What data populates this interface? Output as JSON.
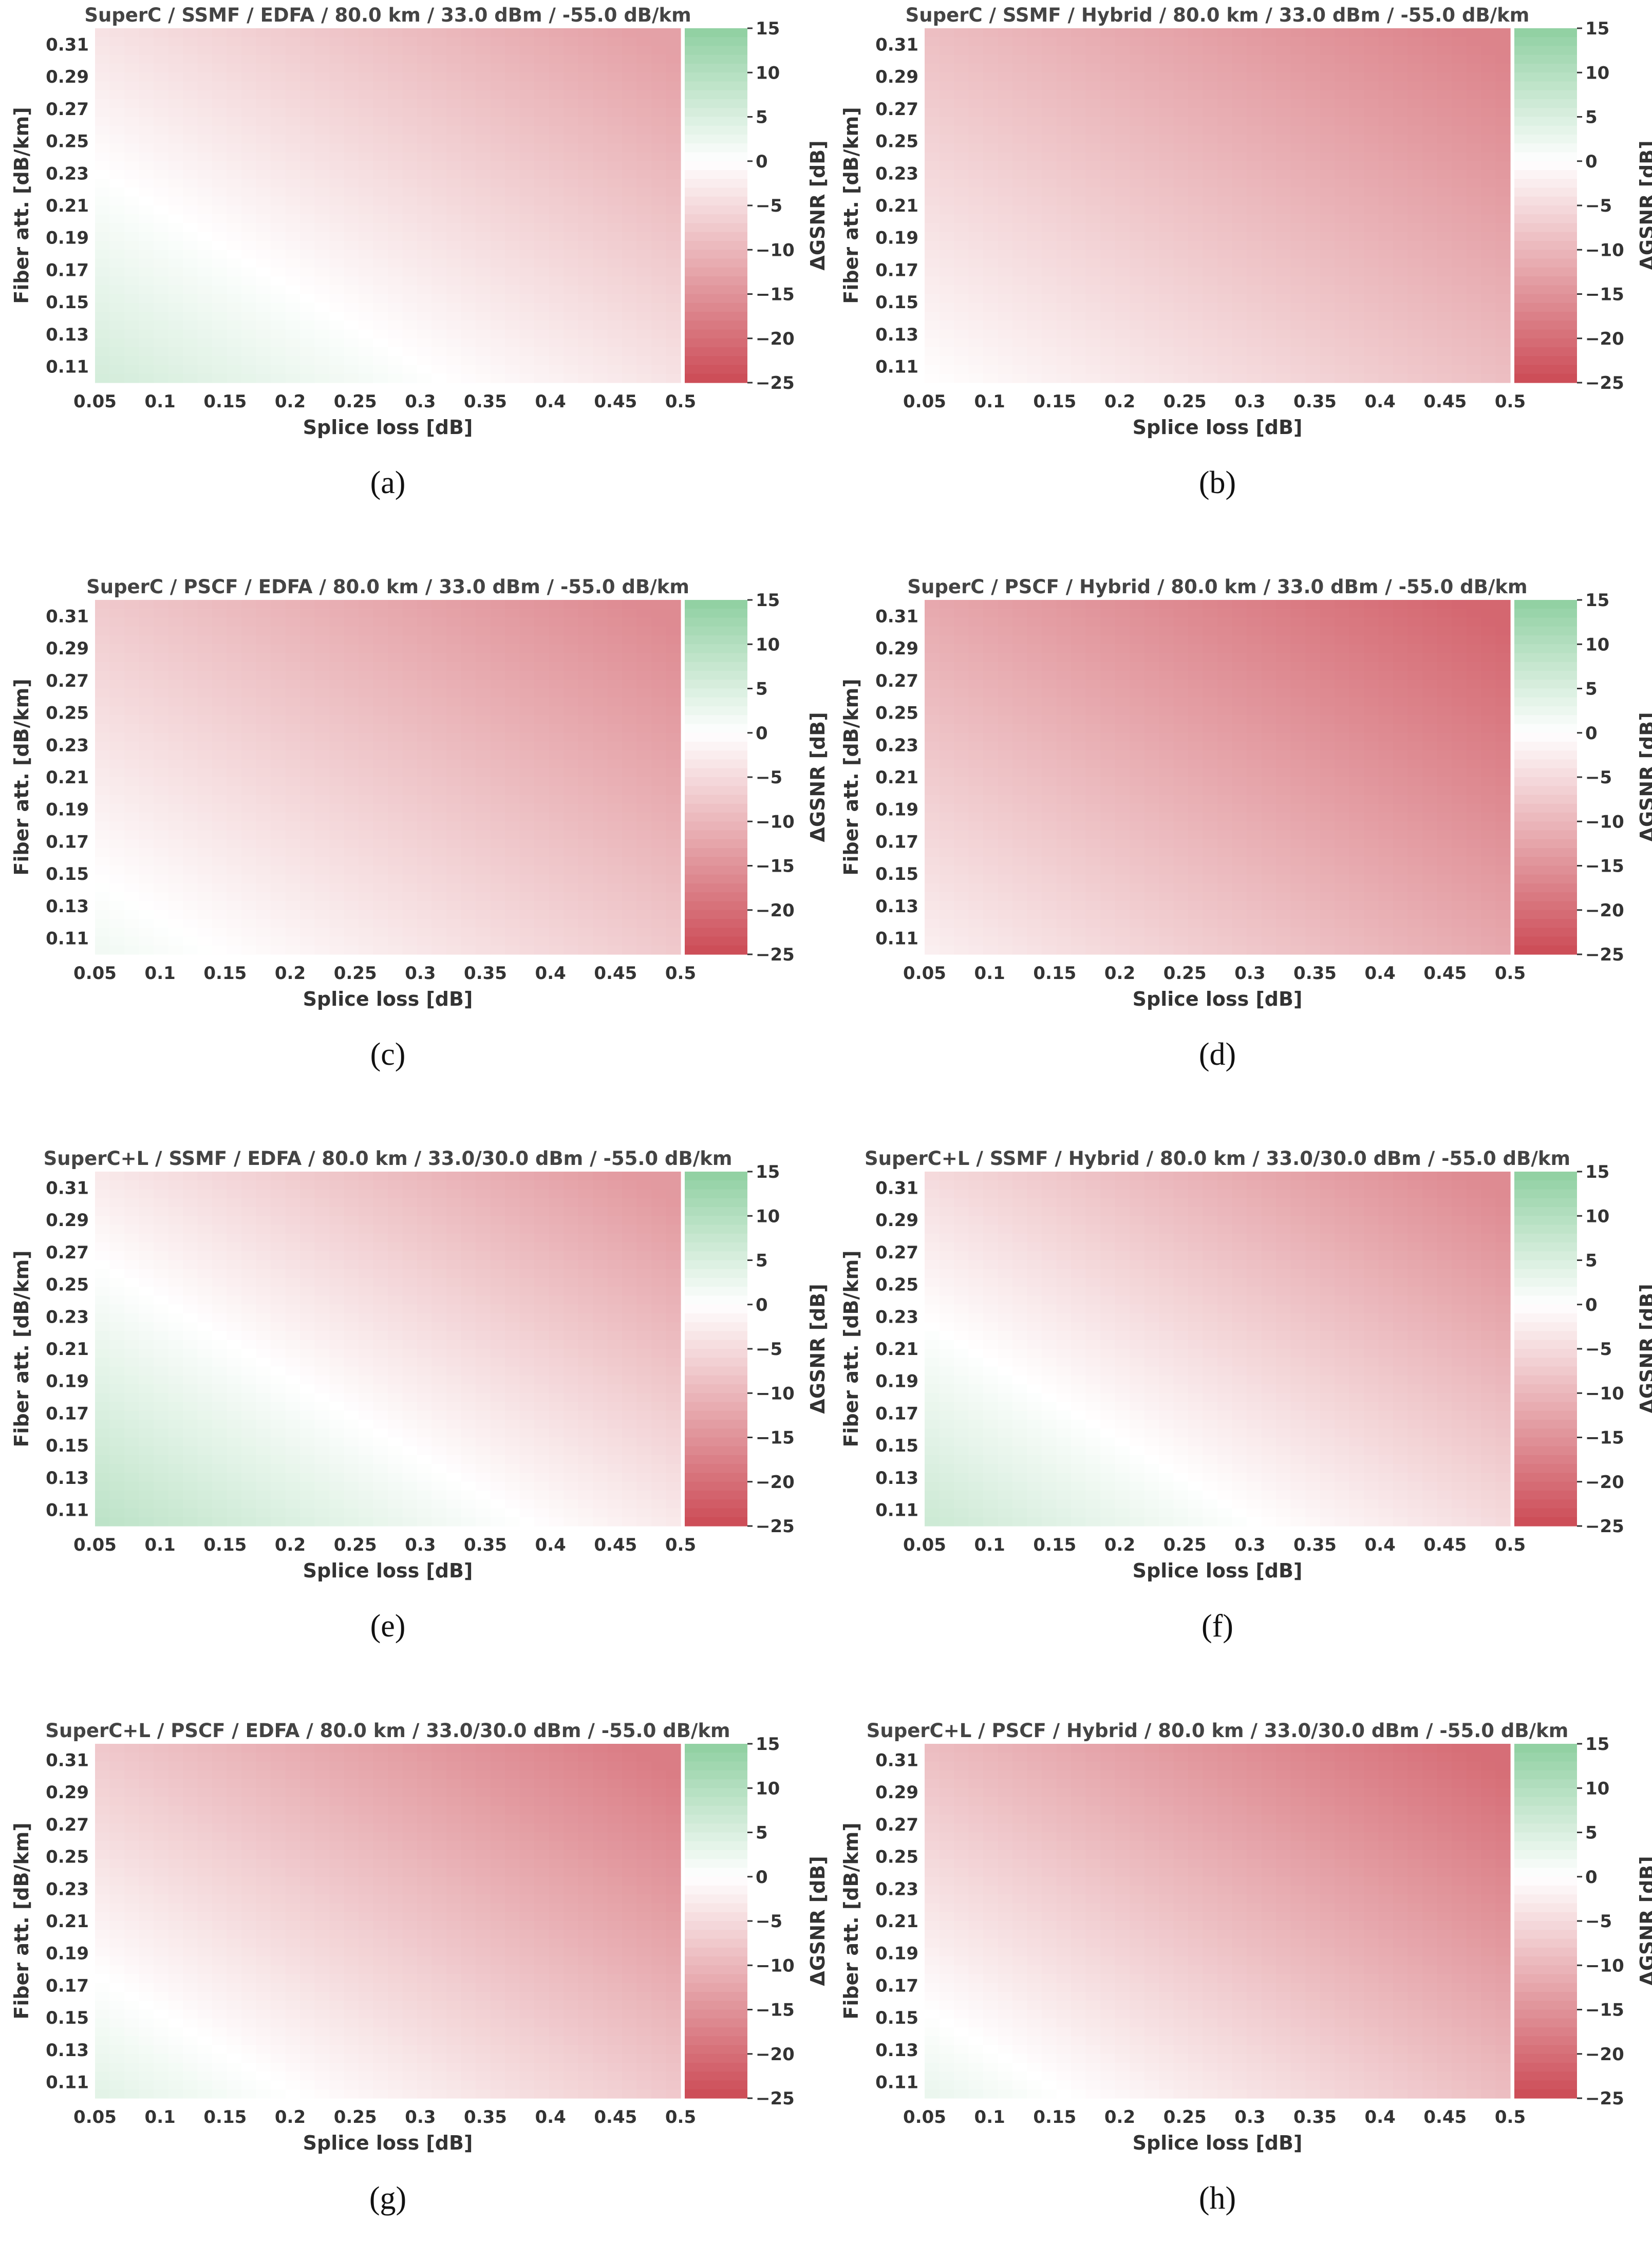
{
  "figure": {
    "colorbar_label": "ΔGSNR [dB]",
    "xlabel": "Splice loss [dB]",
    "ylabel": "Fiber att. [dB/km]"
  },
  "chart_data": [
    {
      "id": "a",
      "type": "heatmap",
      "title": "SuperC / SSMF / EDFA / 80.0 km / 33.0 dBm / -55.0 dB/km",
      "subcaption": "(a)",
      "xlabel": "Splice loss [dB]",
      "ylabel": "Fiber att. [dB/km]",
      "x_ticks": [
        "0.05",
        "0.1",
        "0.15",
        "0.2",
        "0.25",
        "0.3",
        "0.35",
        "0.4",
        "0.45",
        "0.5"
      ],
      "y_ticks": [
        "0.31",
        "0.29",
        "0.27",
        "0.25",
        "0.23",
        "0.21",
        "0.19",
        "0.17",
        "0.15",
        "0.13",
        "0.11"
      ],
      "x_range": [
        0.05,
        0.5
      ],
      "y_range": [
        0.1,
        0.32
      ],
      "colorbar": {
        "label": "ΔGSNR [dB]",
        "ticks": [
          "15",
          "10",
          "5",
          "0",
          "−5",
          "−10",
          "−15",
          "−20",
          "−25"
        ],
        "range": [
          -25,
          15
        ]
      },
      "value_model": {
        "at_min_splice_min_att": 6,
        "at_max_splice_max_att": -13
      },
      "colors": {
        "positive": "#8ecfa0",
        "negative": "#cc4a55",
        "zero": "#ffffff"
      }
    },
    {
      "id": "b",
      "type": "heatmap",
      "title": "SuperC / SSMF / Hybrid / 80.0 km / 33.0 dBm / -55.0 dB/km",
      "subcaption": "(b)",
      "xlabel": "Splice loss [dB]",
      "ylabel": "Fiber att. [dB/km]",
      "x_ticks": [
        "0.05",
        "0.1",
        "0.15",
        "0.2",
        "0.25",
        "0.3",
        "0.35",
        "0.4",
        "0.45",
        "0.5"
      ],
      "y_ticks": [
        "0.31",
        "0.29",
        "0.27",
        "0.25",
        "0.23",
        "0.21",
        "0.19",
        "0.17",
        "0.15",
        "0.13",
        "0.11"
      ],
      "x_range": [
        0.05,
        0.5
      ],
      "y_range": [
        0.1,
        0.32
      ],
      "colorbar": {
        "label": "ΔGSNR [dB]",
        "ticks": [
          "15",
          "10",
          "5",
          "0",
          "−5",
          "−10",
          "−15",
          "−20",
          "−25"
        ],
        "range": [
          -25,
          15
        ]
      },
      "value_model": {
        "at_min_splice_min_att": 0,
        "at_max_splice_max_att": -17
      },
      "colors": {
        "positive": "#8ecfa0",
        "negative": "#cc4a55",
        "zero": "#ffffff"
      }
    },
    {
      "id": "c",
      "type": "heatmap",
      "title": "SuperC / PSCF / EDFA / 80.0 km / 33.0 dBm / -55.0 dB/km",
      "subcaption": "(c)",
      "xlabel": "Splice loss [dB]",
      "ylabel": "Fiber att. [dB/km]",
      "x_ticks": [
        "0.05",
        "0.1",
        "0.15",
        "0.2",
        "0.25",
        "0.3",
        "0.35",
        "0.4",
        "0.45",
        "0.5"
      ],
      "y_ticks": [
        "0.31",
        "0.29",
        "0.27",
        "0.25",
        "0.23",
        "0.21",
        "0.19",
        "0.17",
        "0.15",
        "0.13",
        "0.11"
      ],
      "x_range": [
        0.05,
        0.5
      ],
      "y_range": [
        0.1,
        0.32
      ],
      "colorbar": {
        "label": "ΔGSNR [dB]",
        "ticks": [
          "15",
          "10",
          "5",
          "0",
          "−5",
          "−10",
          "−15",
          "−20",
          "−25"
        ],
        "range": [
          -25,
          15
        ]
      },
      "value_model": {
        "at_min_splice_min_att": 2,
        "at_max_splice_max_att": -16
      },
      "colors": {
        "positive": "#8ecfa0",
        "negative": "#cc4a55",
        "zero": "#ffffff"
      }
    },
    {
      "id": "d",
      "type": "heatmap",
      "title": "SuperC / PSCF / Hybrid / 80.0 km / 33.0 dBm / -55.0 dB/km",
      "subcaption": "(d)",
      "xlabel": "Splice loss [dB]",
      "ylabel": "Fiber att. [dB/km]",
      "x_ticks": [
        "0.05",
        "0.1",
        "0.15",
        "0.2",
        "0.25",
        "0.3",
        "0.35",
        "0.4",
        "0.45",
        "0.5"
      ],
      "y_ticks": [
        "0.31",
        "0.29",
        "0.27",
        "0.25",
        "0.23",
        "0.21",
        "0.19",
        "0.17",
        "0.15",
        "0.13",
        "0.11"
      ],
      "x_range": [
        0.05,
        0.5
      ],
      "y_range": [
        0.1,
        0.32
      ],
      "colorbar": {
        "label": "ΔGSNR [dB]",
        "ticks": [
          "15",
          "10",
          "5",
          "0",
          "−5",
          "−10",
          "−15",
          "−20",
          "−25"
        ],
        "range": [
          -25,
          15
        ]
      },
      "value_model": {
        "at_min_splice_min_att": -2,
        "at_max_splice_max_att": -21
      },
      "colors": {
        "positive": "#8ecfa0",
        "negative": "#cc4a55",
        "zero": "#ffffff"
      }
    },
    {
      "id": "e",
      "type": "heatmap",
      "title": "SuperC+L / SSMF / EDFA / 80.0 km / 33.0/30.0 dBm / -55.0 dB/km",
      "subcaption": "(e)",
      "xlabel": "Splice loss [dB]",
      "ylabel": "Fiber att. [dB/km]",
      "x_ticks": [
        "0.05",
        "0.1",
        "0.15",
        "0.2",
        "0.25",
        "0.3",
        "0.35",
        "0.4",
        "0.45",
        "0.5"
      ],
      "y_ticks": [
        "0.31",
        "0.29",
        "0.27",
        "0.25",
        "0.23",
        "0.21",
        "0.19",
        "0.17",
        "0.15",
        "0.13",
        "0.11"
      ],
      "x_range": [
        0.05,
        0.5
      ],
      "y_range": [
        0.1,
        0.32
      ],
      "colorbar": {
        "label": "ΔGSNR [dB]",
        "ticks": [
          "15",
          "10",
          "5",
          "0",
          "−5",
          "−10",
          "−15",
          "−20",
          "−25"
        ],
        "range": [
          -25,
          15
        ]
      },
      "value_model": {
        "at_min_splice_min_att": 9,
        "at_max_splice_max_att": -14
      },
      "colors": {
        "positive": "#8ecfa0",
        "negative": "#cc4a55",
        "zero": "#ffffff"
      }
    },
    {
      "id": "f",
      "type": "heatmap",
      "title": "SuperC+L / SSMF / Hybrid / 80.0 km / 33.0/30.0 dBm / -55.0 dB/km",
      "subcaption": "(f)",
      "xlabel": "Splice loss [dB]",
      "ylabel": "Fiber att. [dB/km]",
      "x_ticks": [
        "0.05",
        "0.1",
        "0.15",
        "0.2",
        "0.25",
        "0.3",
        "0.35",
        "0.4",
        "0.45",
        "0.5"
      ],
      "y_ticks": [
        "0.31",
        "0.29",
        "0.27",
        "0.25",
        "0.23",
        "0.21",
        "0.19",
        "0.17",
        "0.15",
        "0.13",
        "0.11"
      ],
      "x_range": [
        0.05,
        0.5
      ],
      "y_range": [
        0.1,
        0.32
      ],
      "colorbar": {
        "label": "ΔGSNR [dB]",
        "ticks": [
          "15",
          "10",
          "5",
          "0",
          "−5",
          "−10",
          "−15",
          "−20",
          "−25"
        ],
        "range": [
          -25,
          15
        ]
      },
      "value_model": {
        "at_min_splice_min_att": 7,
        "at_max_splice_max_att": -16
      },
      "colors": {
        "positive": "#8ecfa0",
        "negative": "#cc4a55",
        "zero": "#ffffff"
      }
    },
    {
      "id": "g",
      "type": "heatmap",
      "title": "SuperC+L / PSCF / EDFA / 80.0 km / 33.0/30.0 dBm / -55.0 dB/km",
      "subcaption": "(g)",
      "xlabel": "Splice loss [dB]",
      "ylabel": "Fiber att. [dB/km]",
      "x_ticks": [
        "0.05",
        "0.1",
        "0.15",
        "0.2",
        "0.25",
        "0.3",
        "0.35",
        "0.4",
        "0.45",
        "0.5"
      ],
      "y_ticks": [
        "0.31",
        "0.29",
        "0.27",
        "0.25",
        "0.23",
        "0.21",
        "0.19",
        "0.17",
        "0.15",
        "0.13",
        "0.11"
      ],
      "x_range": [
        0.05,
        0.5
      ],
      "y_range": [
        0.1,
        0.32
      ],
      "colorbar": {
        "label": "ΔGSNR [dB]",
        "ticks": [
          "15",
          "10",
          "5",
          "0",
          "−5",
          "−10",
          "−15",
          "−20",
          "−25"
        ],
        "range": [
          -25,
          15
        ]
      },
      "value_model": {
        "at_min_splice_min_att": 4,
        "at_max_splice_max_att": -18
      },
      "colors": {
        "positive": "#8ecfa0",
        "negative": "#cc4a55",
        "zero": "#ffffff"
      }
    },
    {
      "id": "h",
      "type": "heatmap",
      "title": "SuperC+L / PSCF / Hybrid / 80.0 km / 33.0/30.0 dBm / -55.0 dB/km",
      "subcaption": "(h)",
      "xlabel": "Splice loss [dB]",
      "ylabel": "Fiber att. [dB/km]",
      "x_ticks": [
        "0.05",
        "0.1",
        "0.15",
        "0.2",
        "0.25",
        "0.3",
        "0.35",
        "0.4",
        "0.45",
        "0.5"
      ],
      "y_ticks": [
        "0.31",
        "0.29",
        "0.27",
        "0.25",
        "0.23",
        "0.21",
        "0.19",
        "0.17",
        "0.15",
        "0.13",
        "0.11"
      ],
      "x_range": [
        0.05,
        0.5
      ],
      "y_range": [
        0.1,
        0.32
      ],
      "colorbar": {
        "label": "ΔGSNR [dB]",
        "ticks": [
          "15",
          "10",
          "5",
          "0",
          "−5",
          "−10",
          "−15",
          "−20",
          "−25"
        ],
        "range": [
          -25,
          15
        ]
      },
      "value_model": {
        "at_min_splice_min_att": 3,
        "at_max_splice_max_att": -20
      },
      "colors": {
        "positive": "#8ecfa0",
        "negative": "#cc4a55",
        "zero": "#ffffff"
      }
    }
  ]
}
